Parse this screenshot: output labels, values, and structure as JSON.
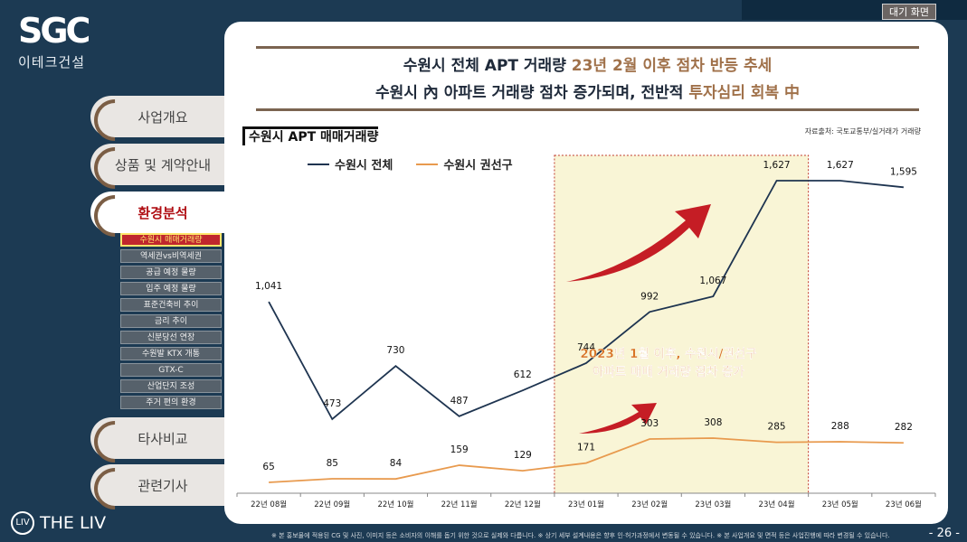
{
  "topbar": {
    "standby_label": "대기 화면"
  },
  "logo": {
    "mark": "SGC",
    "sub": "이테크건설"
  },
  "nav": {
    "items": [
      {
        "label": "사업개요"
      },
      {
        "label": "상품 및 계약안내"
      },
      {
        "label": "환경분석"
      },
      {
        "label": "타사비교"
      },
      {
        "label": "관련기사"
      }
    ],
    "sub_items": [
      "수원시 매매거래량",
      "역세권vs비역세권",
      "공급 예정 물량",
      "입주 예정 물량",
      "표준건축비 추이",
      "금리 추이",
      "신분당선 연장",
      "수원발 KTX 개통",
      "GTX-C",
      "산업단지 조성",
      "주거 편의 환경"
    ]
  },
  "headline": {
    "line1_a": "수원시 전체 APT 거래량 ",
    "line1_b": "23년 2월 이후 점차 반등 추세",
    "line2_a": "수원시 內 아파트 거래량 점차 증가되며, 전반적 ",
    "line2_b": "투자심리 회복 中"
  },
  "chart_title": "수원시 APT 매매거래량",
  "source": "자료출처: 국토교통부/실거래가 거래량",
  "annotation": {
    "line1": "2023년 1월 이후, 수원시/권선구",
    "line2": "아파트 매매 거래량 점차 증가"
  },
  "colors": {
    "series1": "#1e3450",
    "series2": "#e89a4e",
    "highlight": "#f9f5d6",
    "arrow": "#c2111b"
  },
  "chart_data": {
    "type": "line",
    "categories": [
      "22년 08월",
      "22년 09월",
      "22년 10월",
      "22년 11월",
      "22년 12월",
      "23년 01월",
      "23년 02월",
      "23년 03월",
      "23년 04월",
      "23년 05월",
      "23년 06월"
    ],
    "series": [
      {
        "name": "수원시 전체",
        "values": [
          1041,
          473,
          730,
          487,
          612,
          744,
          992,
          1067,
          1627,
          1627,
          1595
        ],
        "labels": [
          "1,041",
          "473",
          "730",
          "487",
          "612",
          "744",
          "992",
          "1,067",
          "1,627",
          "1,627",
          "1,595"
        ]
      },
      {
        "name": "수원시 권선구",
        "values": [
          65,
          85,
          84,
          159,
          129,
          171,
          303,
          308,
          285,
          288,
          282
        ],
        "labels": [
          "65",
          "85",
          "84",
          "159",
          "129",
          "171",
          "303",
          "308",
          "285",
          "288",
          "282"
        ]
      }
    ],
    "highlight_range": [
      "23년 01월",
      "23년 04월"
    ],
    "ylim": [
      0,
      1800
    ],
    "grid": false,
    "legend": "top-left"
  },
  "footer": {
    "note": "※ 본 홍보물에 적용된 CG 및 사진, 이미지 등은 소비자의 이해를 돕기 위한 것으로 실제와 다릅니다. ※ 상기 세부 설계내용은 향후 인·허가과정에서 변동될 수 있습니다. ※ 본 사업개요 및 면적 등은 사업진행에 따라 변경될 수 있습니다.",
    "page": "- 26 -",
    "brand": "THE LIV",
    "brand_mark": "LIV"
  }
}
